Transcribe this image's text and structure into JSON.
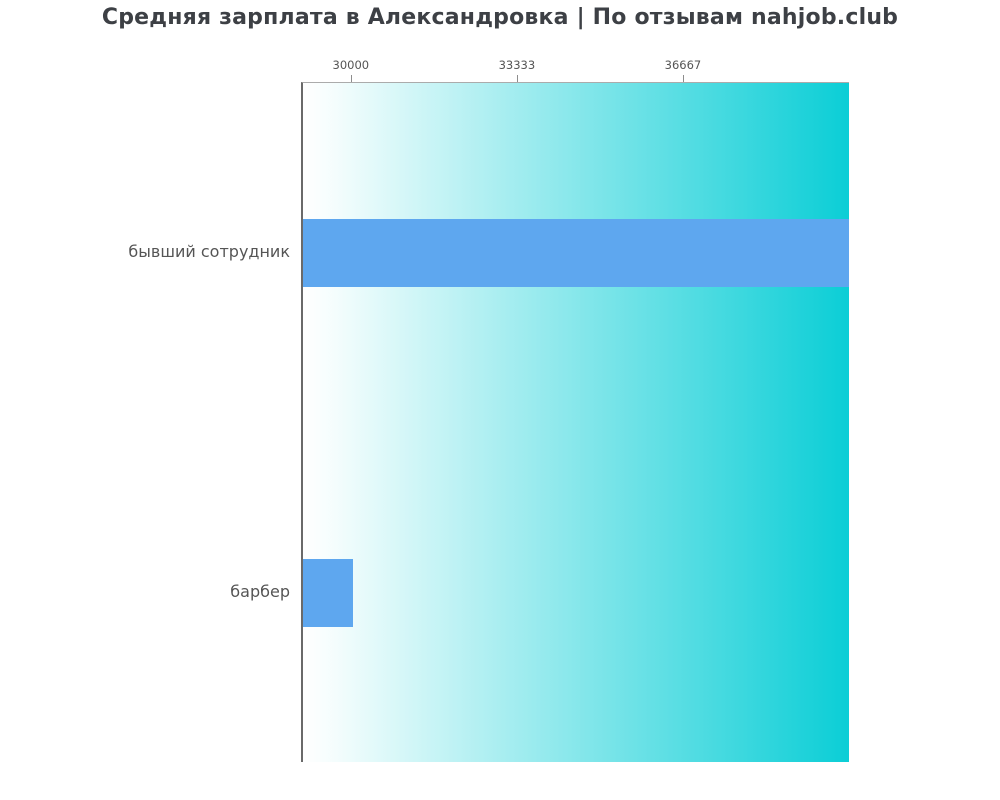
{
  "title": "Средняя зарплата в Александровка | По отзывам nahjob.club",
  "chart_data": {
    "type": "bar",
    "orientation": "horizontal",
    "title": "Средняя зарплата в Александровка | По отзывам nahjob.club",
    "categories": [
      "бывший сотрудник",
      "барбер"
    ],
    "values": [
      40000,
      30000
    ],
    "xlabel": "",
    "ylabel": "",
    "xlim": [
      29000,
      40000
    ],
    "xticks": [
      30000,
      33333,
      36667
    ],
    "xtick_labels": [
      "30000",
      "33333",
      "36667"
    ],
    "xtick_side": "top",
    "grid": false,
    "legend": null,
    "colors": {
      "bar": "#5ea7ef",
      "plot_gradient_start": "#ffffff",
      "plot_gradient_end": "#0bced6",
      "axis_line": "#6a6a6a",
      "plot_top_border": "#ababab",
      "tick_mark": "#8d8d8d",
      "tick_label": "#555555",
      "category_label": "#555555",
      "title": "#3d4045"
    }
  }
}
